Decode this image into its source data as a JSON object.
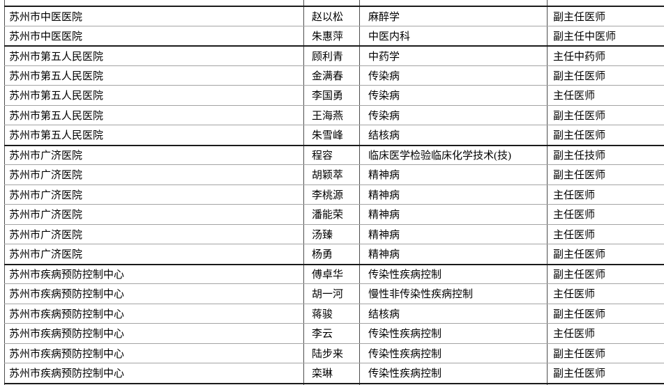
{
  "colors": {
    "background": "#ffffff",
    "text": "#000000",
    "border_dark": "#1a1a1a",
    "border_light": "#a3a3a3",
    "border_vertical": "#4d4d4d"
  },
  "table": {
    "rows": [
      {
        "hospital": "苏州市中医医院",
        "name": "赵以松",
        "specialty": "麻醉学",
        "title": "副主任医师"
      },
      {
        "hospital": "苏州市中医医院",
        "name": "朱惠萍",
        "specialty": "中医内科",
        "title": "副主任中医师"
      },
      {
        "hospital": "苏州市第五人民医院",
        "name": "顾利青",
        "specialty": "中药学",
        "title": "主任中药师"
      },
      {
        "hospital": "苏州市第五人民医院",
        "name": "金满春",
        "specialty": "传染病",
        "title": "副主任医师"
      },
      {
        "hospital": "苏州市第五人民医院",
        "name": "李国勇",
        "specialty": "传染病",
        "title": "主任医师"
      },
      {
        "hospital": "苏州市第五人民医院",
        "name": "王海燕",
        "specialty": "传染病",
        "title": "副主任医师"
      },
      {
        "hospital": "苏州市第五人民医院",
        "name": "朱雪峰",
        "specialty": "结核病",
        "title": "副主任医师"
      },
      {
        "hospital": "苏州市广济医院",
        "name": "程容",
        "specialty": "临床医学检验临床化学技术(技)",
        "title": "副主任技师"
      },
      {
        "hospital": "苏州市广济医院",
        "name": "胡颖萃",
        "specialty": "精神病",
        "title": "副主任医师"
      },
      {
        "hospital": "苏州市广济医院",
        "name": "李桃源",
        "specialty": "精神病",
        "title": "主任医师"
      },
      {
        "hospital": "苏州市广济医院",
        "name": "潘能荣",
        "specialty": "精神病",
        "title": "主任医师"
      },
      {
        "hospital": "苏州市广济医院",
        "name": "汤臻",
        "specialty": "精神病",
        "title": "主任医师"
      },
      {
        "hospital": "苏州市广济医院",
        "name": "杨勇",
        "specialty": "精神病",
        "title": "副主任医师"
      },
      {
        "hospital": "苏州市疾病预防控制中心",
        "name": "傅卓华",
        "specialty": "传染性疾病控制",
        "title": "副主任医师"
      },
      {
        "hospital": "苏州市疾病预防控制中心",
        "name": "胡一河",
        "specialty": "慢性非传染性疾病控制",
        "title": "主任医师"
      },
      {
        "hospital": "苏州市疾病预防控制中心",
        "name": "蒋骏",
        "specialty": "结核病",
        "title": "副主任医师"
      },
      {
        "hospital": "苏州市疾病预防控制中心",
        "name": "李云",
        "specialty": "传染性疾病控制",
        "title": "主任医师"
      },
      {
        "hospital": "苏州市疾病预防控制中心",
        "name": "陆步来",
        "specialty": "传染性疾病控制",
        "title": "副主任医师"
      },
      {
        "hospital": "苏州市疾病预防控制中心",
        "name": "栾琳",
        "specialty": "传染性疾病控制",
        "title": "副主任医师"
      }
    ]
  }
}
